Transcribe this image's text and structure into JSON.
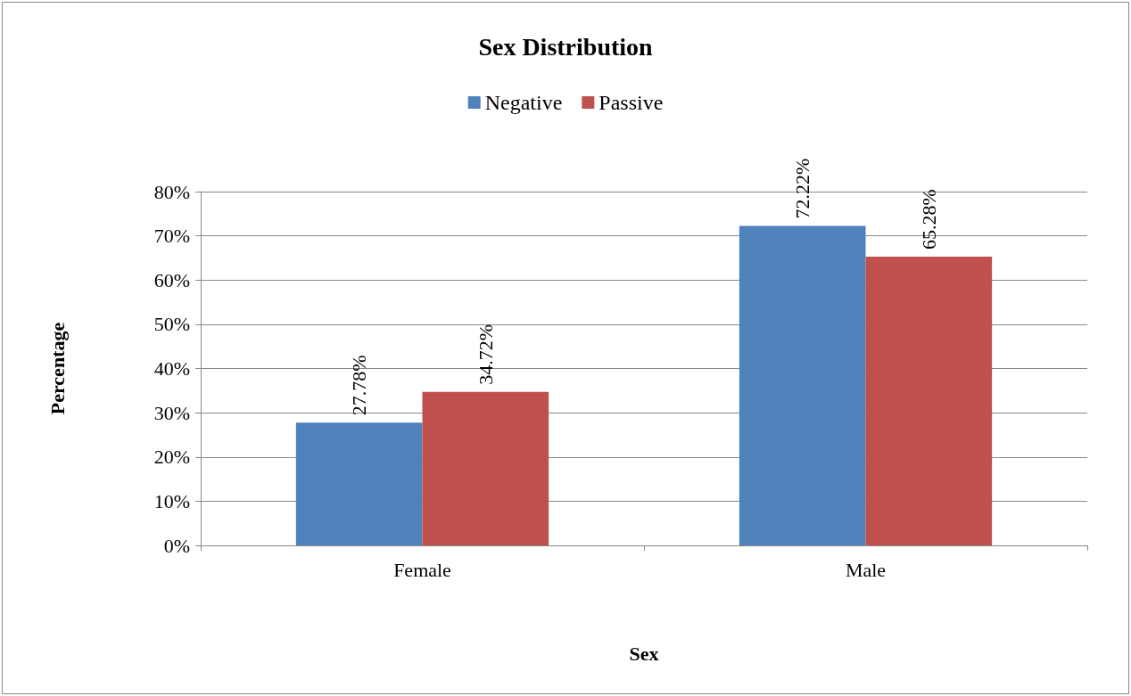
{
  "chart_data": {
    "type": "bar",
    "title": "Sex Distribution",
    "xlabel": "Sex",
    "ylabel": "Percentage",
    "categories": [
      "Female",
      "Male"
    ],
    "series": [
      {
        "name": "Negative",
        "color": "#4f81bd",
        "values": [
          27.78,
          72.22
        ],
        "value_labels": [
          "27.78%",
          "72.22%"
        ]
      },
      {
        "name": "Passive",
        "color": "#c0504d",
        "values": [
          34.72,
          65.28
        ],
        "value_labels": [
          "34.72%",
          "65.28%"
        ]
      }
    ],
    "ylim": [
      0,
      80
    ],
    "yticks": [
      {
        "value": 0,
        "label": "0%"
      },
      {
        "value": 10,
        "label": "10%"
      },
      {
        "value": 20,
        "label": "20%"
      },
      {
        "value": 30,
        "label": "30%"
      },
      {
        "value": 40,
        "label": "40%"
      },
      {
        "value": 50,
        "label": "50%"
      },
      {
        "value": 60,
        "label": "60%"
      },
      {
        "value": 70,
        "label": "70%"
      },
      {
        "value": 80,
        "label": "80%"
      }
    ],
    "grid": "y",
    "legend": "top"
  }
}
